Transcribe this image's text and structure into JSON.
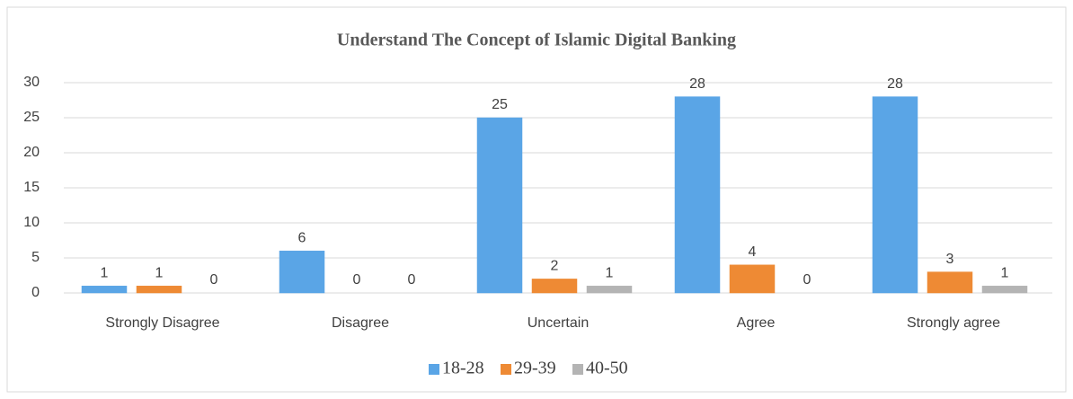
{
  "chart_data": {
    "type": "bar",
    "title": "Understand The Concept of Islamic Digital Banking",
    "categories": [
      "Strongly Disagree",
      "Disagree",
      "Uncertain",
      "Agree",
      "Strongly agree"
    ],
    "series": [
      {
        "name": "18-28",
        "color": "#5aa5e6",
        "values": [
          1,
          6,
          25,
          28,
          28
        ]
      },
      {
        "name": "29-39",
        "color": "#ee8a34",
        "values": [
          1,
          0,
          2,
          4,
          3
        ]
      },
      {
        "name": "40-50",
        "color": "#b4b4b4",
        "values": [
          0,
          0,
          1,
          0,
          1
        ]
      }
    ],
    "ylim": [
      0,
      30
    ],
    "yticks": [
      0,
      5,
      10,
      15,
      20,
      25,
      30
    ],
    "grid": true,
    "legend": "bottom"
  }
}
